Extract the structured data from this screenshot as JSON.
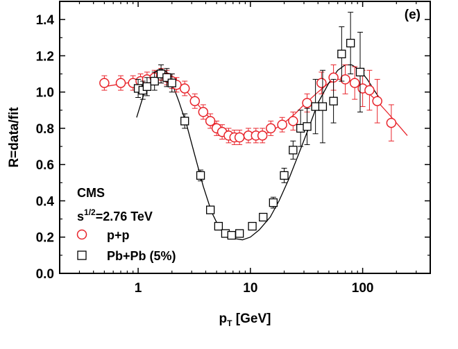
{
  "chart_data": {
    "type": "scatter",
    "panel_label": "(e)",
    "xlabel": {
      "main": "p",
      "sub": "T",
      "rest": " [GeV]"
    },
    "ylabel": "R=data/fit",
    "x_scale": "log",
    "xlim": [
      0.2,
      400
    ],
    "ylim": [
      0.0,
      1.5
    ],
    "x_ticks": [
      1,
      10,
      100
    ],
    "x_tick_labels": [
      "1",
      "10",
      "100"
    ],
    "y_ticks": [
      0.0,
      0.2,
      0.4,
      0.6,
      0.8,
      1.0,
      1.2,
      1.4
    ],
    "y_tick_labels": [
      "0.0",
      "0.2",
      "0.4",
      "0.6",
      "0.8",
      "1.0",
      "1.2",
      "1.4"
    ],
    "annotations": {
      "experiment": "CMS",
      "energy_base": "s",
      "energy_exp": "1/2",
      "energy_rest": "=2.76 TeV"
    },
    "series": [
      {
        "name": "p+p",
        "marker": "circle",
        "color": "#e8232a",
        "x": [
          0.5,
          0.7,
          0.9,
          1.05,
          1.2,
          1.4,
          1.6,
          1.8,
          2.0,
          2.2,
          2.6,
          3.2,
          3.8,
          4.4,
          5.0,
          5.6,
          6.4,
          7.2,
          8.0,
          9.6,
          11.2,
          12.8,
          15.2,
          19.2,
          24.0,
          32.0,
          43.0,
          55.0,
          70.0,
          85.0,
          100.0,
          115.0,
          135.0,
          180.0
        ],
        "y": [
          1.05,
          1.05,
          1.05,
          1.06,
          1.07,
          1.08,
          1.09,
          1.08,
          1.06,
          1.04,
          1.02,
          0.95,
          0.89,
          0.84,
          0.8,
          0.78,
          0.76,
          0.75,
          0.75,
          0.76,
          0.76,
          0.76,
          0.8,
          0.82,
          0.84,
          0.94,
          1.05,
          1.08,
          1.07,
          1.05,
          1.02,
          1.01,
          0.95,
          0.83
        ],
        "err": [
          0.04,
          0.04,
          0.04,
          0.04,
          0.04,
          0.04,
          0.04,
          0.04,
          0.04,
          0.04,
          0.04,
          0.04,
          0.04,
          0.04,
          0.04,
          0.04,
          0.04,
          0.04,
          0.04,
          0.04,
          0.04,
          0.04,
          0.04,
          0.04,
          0.05,
          0.05,
          0.06,
          0.07,
          0.08,
          0.09,
          0.1,
          0.11,
          0.12,
          0.1
        ],
        "fit": [
          [
            0.5,
            1.03
          ],
          [
            1.0,
            1.06
          ],
          [
            1.5,
            1.09
          ],
          [
            2.0,
            1.07
          ],
          [
            2.5,
            1.03
          ],
          [
            3.0,
            0.97
          ],
          [
            4.0,
            0.88
          ],
          [
            5.0,
            0.82
          ],
          [
            6.5,
            0.78
          ],
          [
            8.0,
            0.76
          ],
          [
            10.0,
            0.755
          ],
          [
            12.0,
            0.76
          ],
          [
            15.0,
            0.78
          ],
          [
            20.0,
            0.83
          ],
          [
            25.0,
            0.88
          ],
          [
            30.0,
            0.93
          ],
          [
            40.0,
            1.0
          ],
          [
            50.0,
            1.05
          ],
          [
            60.0,
            1.07
          ],
          [
            70.0,
            1.07
          ],
          [
            80.0,
            1.06
          ],
          [
            100.0,
            1.02
          ],
          [
            130.0,
            0.96
          ],
          [
            170.0,
            0.88
          ],
          [
            220.0,
            0.8
          ],
          [
            250.0,
            0.76
          ]
        ]
      },
      {
        "name": "Pb+Pb (5%)",
        "marker": "square",
        "color": "#000000",
        "x": [
          1.0,
          1.1,
          1.2,
          1.4,
          1.6,
          1.8,
          2.0,
          2.6,
          3.6,
          4.4,
          5.2,
          6.0,
          6.8,
          8.0,
          10.4,
          13.0,
          16.0,
          20.0,
          24.0,
          28.0,
          32.0,
          38.0,
          44.0,
          55.0,
          65.0,
          78.0,
          95.0
        ],
        "y": [
          1.02,
          1.01,
          1.03,
          1.06,
          1.1,
          1.08,
          1.05,
          0.84,
          0.54,
          0.35,
          0.26,
          0.22,
          0.21,
          0.22,
          0.26,
          0.31,
          0.39,
          0.54,
          0.68,
          0.8,
          0.81,
          0.92,
          0.92,
          0.95,
          1.21,
          1.27,
          1.11
        ],
        "err": [
          0.05,
          0.05,
          0.05,
          0.05,
          0.05,
          0.05,
          0.05,
          0.04,
          0.03,
          0.02,
          0.02,
          0.02,
          0.02,
          0.02,
          0.02,
          0.02,
          0.03,
          0.04,
          0.05,
          0.1,
          0.1,
          0.15,
          0.2,
          0.12,
          0.15,
          0.17,
          0.22
        ],
        "fit": [
          [
            0.97,
            0.86
          ],
          [
            1.1,
            0.97
          ],
          [
            1.25,
            1.07
          ],
          [
            1.4,
            1.11
          ],
          [
            1.6,
            1.13
          ],
          [
            1.8,
            1.11
          ],
          [
            2.0,
            1.05
          ],
          [
            2.3,
            0.95
          ],
          [
            2.7,
            0.82
          ],
          [
            3.2,
            0.65
          ],
          [
            3.8,
            0.48
          ],
          [
            4.5,
            0.34
          ],
          [
            5.3,
            0.25
          ],
          [
            6.3,
            0.21
          ],
          [
            7.5,
            0.19
          ],
          [
            8.5,
            0.185
          ],
          [
            10.0,
            0.2
          ],
          [
            12.0,
            0.24
          ],
          [
            15.0,
            0.31
          ],
          [
            18.0,
            0.4
          ],
          [
            22.0,
            0.52
          ],
          [
            27.0,
            0.66
          ],
          [
            33.0,
            0.8
          ],
          [
            40.0,
            0.94
          ],
          [
            50.0,
            1.05
          ],
          [
            60.0,
            1.12
          ],
          [
            70.0,
            1.15
          ],
          [
            80.0,
            1.15
          ],
          [
            95.0,
            1.12
          ],
          [
            110.0,
            1.07
          ],
          [
            130.0,
            1.0
          ],
          [
            140.0,
            0.97
          ]
        ]
      }
    ],
    "legend": {
      "placement": "bottom-left"
    }
  }
}
